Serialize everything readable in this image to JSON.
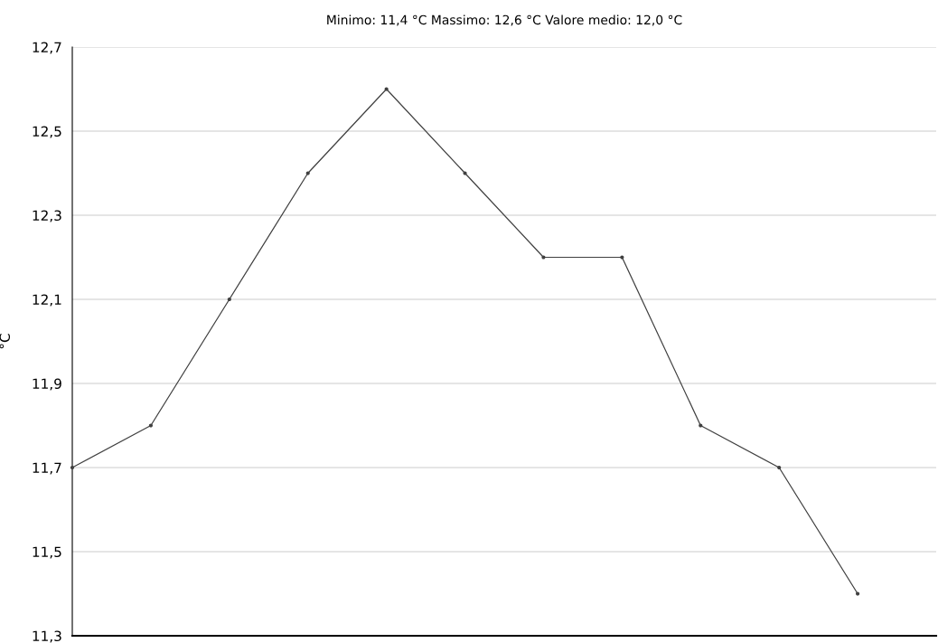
{
  "chart_data": {
    "type": "line",
    "title": "Minimo: 11,4 °C Massimo: 12,6 °C Valore medio: 12,0 °C",
    "ylabel": "°C",
    "categories": [
      null,
      null,
      null,
      null,
      null,
      null,
      null,
      null,
      null,
      null,
      null
    ],
    "series": [
      {
        "color": "#404040",
        "values": [
          11.7,
          11.8,
          12.1,
          12.4,
          12.6,
          12.4,
          12.2,
          12.2,
          11.8,
          11.7,
          11.4
        ]
      }
    ],
    "ylim": [
      11.3,
      12.7
    ],
    "yticks": [
      {
        "value": 11.3,
        "label": "11,3"
      },
      {
        "value": 11.5,
        "label": "11,5"
      },
      {
        "value": 11.7,
        "label": "11,7"
      },
      {
        "value": 11.9,
        "label": "11,9"
      },
      {
        "value": 12.1,
        "label": "12,1"
      },
      {
        "value": 12.3,
        "label": "12,3"
      },
      {
        "value": 12.5,
        "label": "12,5"
      },
      {
        "value": 12.7,
        "label": "12,7"
      }
    ],
    "grid": "y",
    "marker": "circle",
    "line_style": "solid",
    "tick_labels": "y"
  }
}
